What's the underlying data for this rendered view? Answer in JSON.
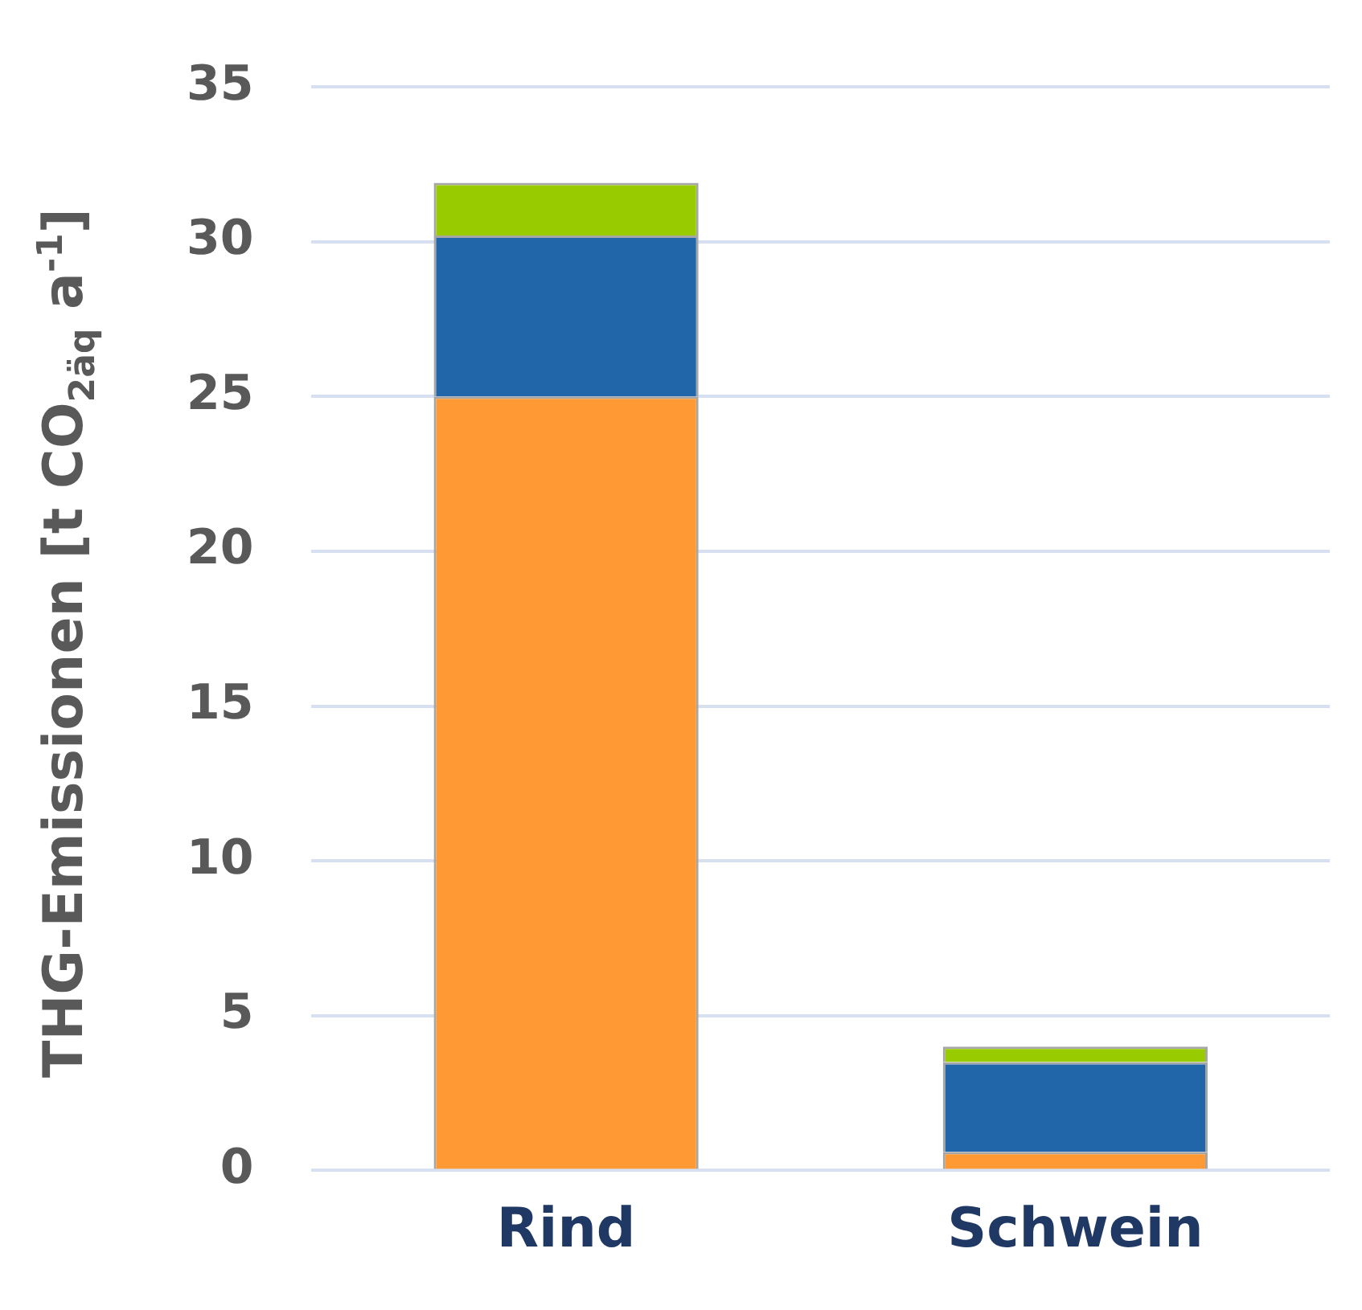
{
  "chart_data": {
    "type": "bar",
    "stacked": true,
    "ylabel": "THG-Emissionen [t CO$_{2äq}$ a$^{-1}$]",
    "categories": [
      "Rind",
      "Schwein"
    ],
    "series": [
      {
        "color": "#ff9933",
        "values": [
          25,
          0.6
        ]
      },
      {
        "color": "#2266aa",
        "values": [
          5.2,
          2.9
        ]
      },
      {
        "color": "#99cc00",
        "values": [
          1.7,
          0.5
        ]
      }
    ],
    "ylim": [
      0,
      35
    ],
    "yticks": [
      0,
      5,
      10,
      15,
      20,
      25,
      30,
      35
    ],
    "grid": "y",
    "legend": false
  }
}
